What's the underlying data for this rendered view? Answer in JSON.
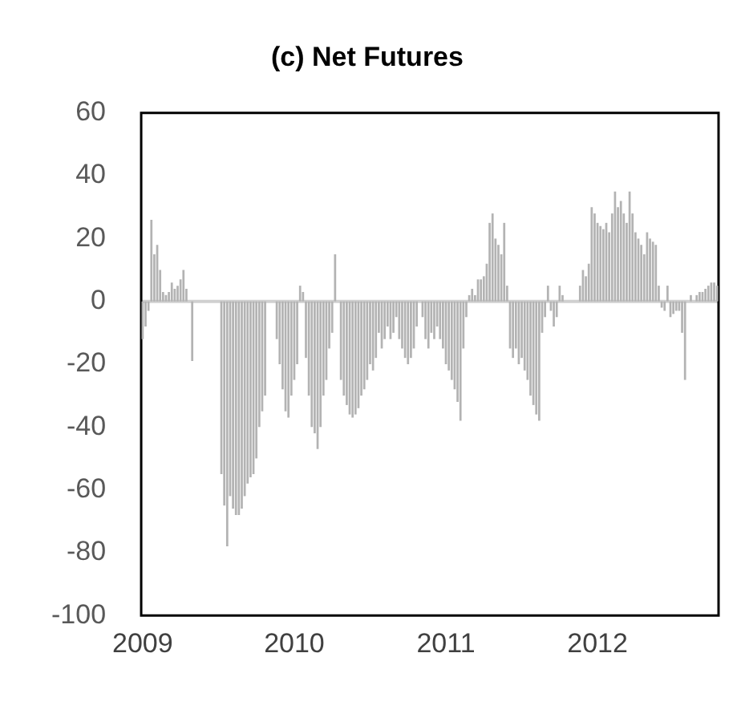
{
  "chart_data": {
    "type": "bar",
    "title": "(c) Net Futures",
    "categories": [
      "2009",
      null,
      null,
      null,
      null,
      null,
      null,
      null,
      null,
      null,
      null,
      null,
      null,
      null,
      null,
      null,
      null,
      null,
      null,
      null,
      null,
      null,
      null,
      null,
      null,
      null,
      null,
      null,
      null,
      null,
      null,
      null,
      null,
      null,
      null,
      null,
      null,
      null,
      null,
      null,
      null,
      null,
      null,
      null,
      null,
      null,
      null,
      null,
      null,
      null,
      null,
      null,
      "2010",
      null,
      null,
      null,
      null,
      null,
      null,
      null,
      null,
      null,
      null,
      null,
      null,
      null,
      null,
      null,
      null,
      null,
      null,
      null,
      null,
      null,
      null,
      null,
      null,
      null,
      null,
      null,
      null,
      null,
      null,
      null,
      null,
      null,
      null,
      null,
      null,
      null,
      null,
      null,
      null,
      null,
      null,
      null,
      null,
      null,
      null,
      null,
      null,
      null,
      null,
      null,
      "2011",
      null,
      null,
      null,
      null,
      null,
      null,
      null,
      null,
      null,
      null,
      null,
      null,
      null,
      null,
      null,
      null,
      null,
      null,
      null,
      null,
      null,
      null,
      null,
      null,
      null,
      null,
      null,
      null,
      null,
      null,
      null,
      null,
      null,
      null,
      null,
      null,
      null,
      null,
      null,
      null,
      null,
      null,
      null,
      null,
      null,
      null,
      null,
      null,
      null,
      null,
      null,
      "2012",
      null,
      null,
      null,
      null,
      null,
      null,
      null,
      null,
      null,
      null,
      null,
      null,
      null,
      null,
      null,
      null,
      null,
      null,
      null,
      null,
      null,
      null,
      null,
      null,
      null,
      null,
      null,
      null,
      null,
      null,
      null,
      null,
      null,
      null,
      null,
      null,
      null,
      null,
      null,
      null,
      null
    ],
    "values": [
      -12,
      -8,
      -3,
      26,
      15,
      18,
      10,
      3,
      2,
      3,
      6,
      4,
      5,
      7,
      10,
      4,
      0,
      -19,
      0,
      0,
      0,
      0,
      0,
      0,
      0,
      0,
      0,
      -55,
      -65,
      -78,
      -62,
      -66,
      -68,
      -68,
      -66,
      -62,
      -58,
      -56,
      -55,
      -50,
      -40,
      -35,
      -30,
      0,
      0,
      0,
      -12,
      -20,
      -28,
      -35,
      -37,
      -30,
      -25,
      -20,
      5,
      3,
      -18,
      -30,
      -40,
      -42,
      -47,
      -40,
      -30,
      -25,
      -15,
      -10,
      15,
      0,
      -25,
      -30,
      -33,
      -36,
      -37,
      -36,
      -34,
      -30,
      -28,
      -25,
      -20,
      -22,
      -18,
      -10,
      -15,
      -12,
      -8,
      -12,
      -10,
      -5,
      -12,
      -15,
      -18,
      -20,
      -18,
      -15,
      -8,
      0,
      -5,
      -12,
      -15,
      -10,
      -12,
      -8,
      -12,
      -15,
      -20,
      -22,
      -25,
      -28,
      -32,
      -38,
      -15,
      -5,
      2,
      4,
      2,
      7,
      7,
      8,
      12,
      25,
      28,
      20,
      18,
      15,
      25,
      5,
      -15,
      -18,
      -15,
      -20,
      -18,
      -22,
      -25,
      -30,
      -33,
      -36,
      -38,
      -10,
      -5,
      5,
      -3,
      -8,
      -5,
      5,
      2,
      0,
      0,
      0,
      0,
      0,
      5,
      10,
      8,
      12,
      30,
      28,
      25,
      24,
      23,
      25,
      22,
      28,
      35,
      30,
      32,
      28,
      25,
      35,
      28,
      22,
      20,
      18,
      15,
      22,
      20,
      19,
      18,
      5,
      -2,
      -3,
      5,
      -5,
      -4,
      -3,
      -3,
      -10,
      -25,
      0,
      2,
      0,
      2,
      3,
      3,
      4,
      5,
      6,
      6,
      5
    ],
    "color": "#b3b3b3",
    "ylim": [
      -100,
      60
    ],
    "yticks": [
      -100,
      -80,
      -60,
      -40,
      -20,
      0,
      20,
      40,
      60
    ]
  }
}
